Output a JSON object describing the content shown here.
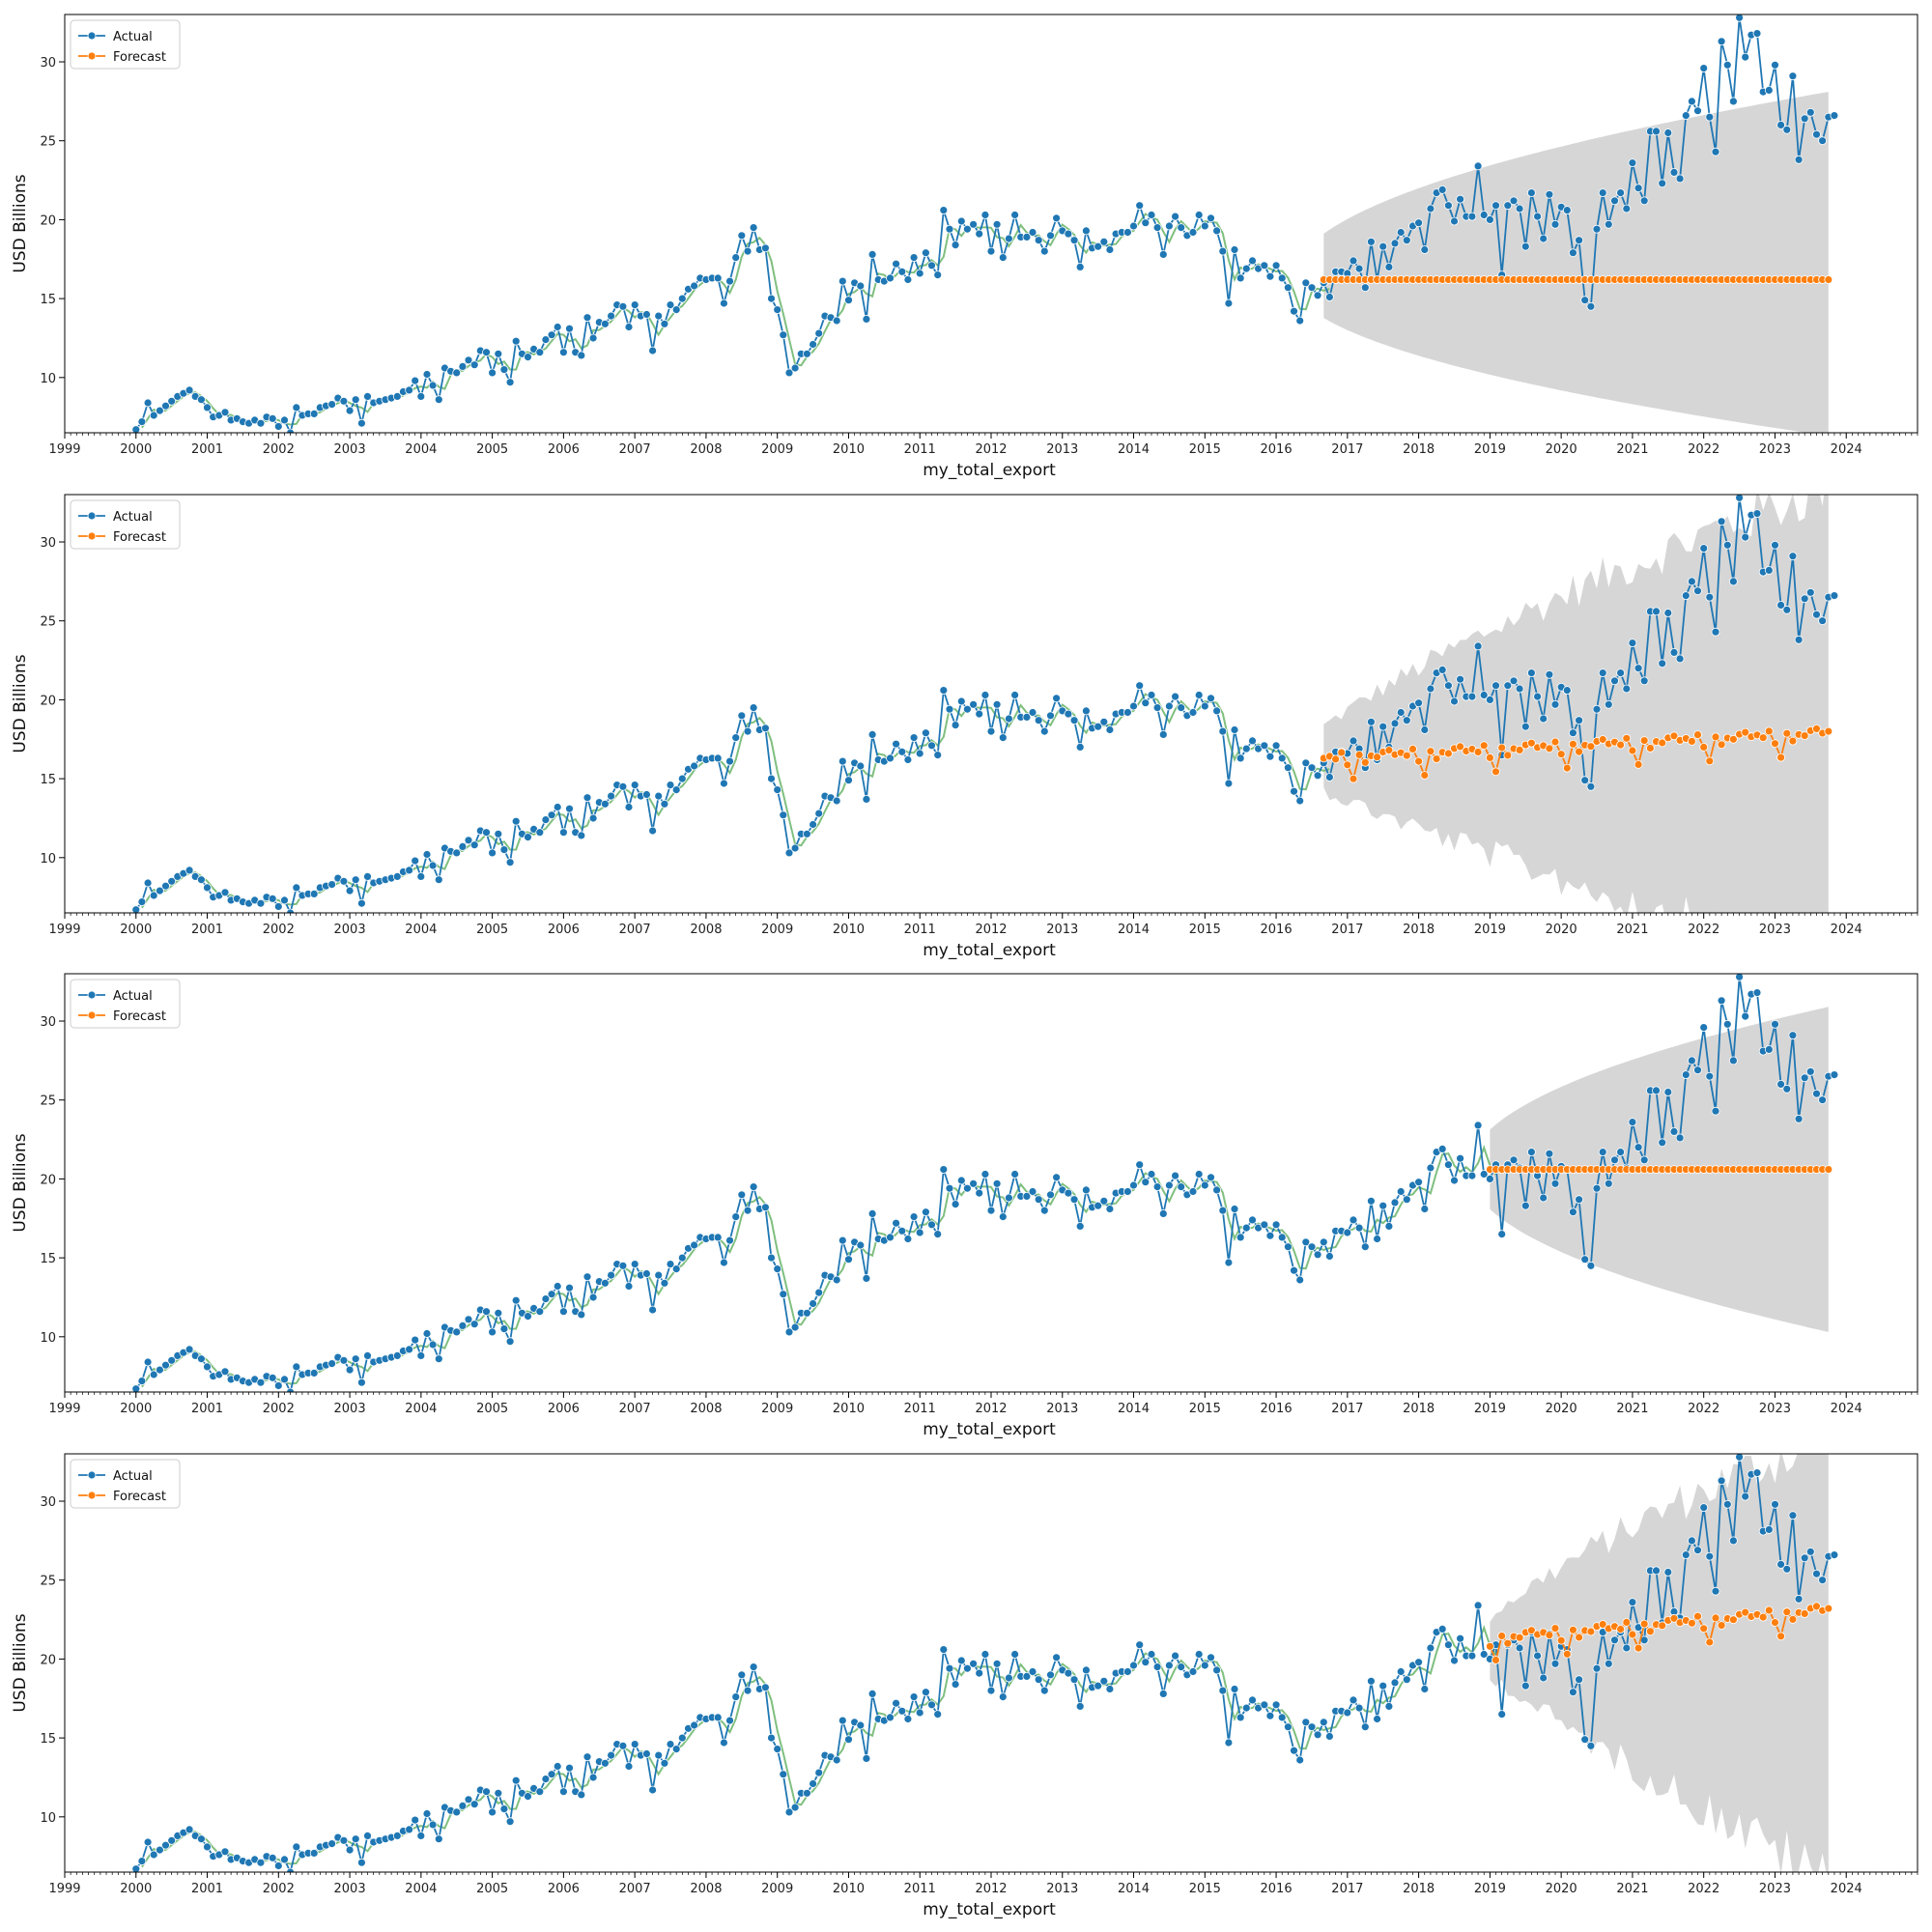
{
  "colors": {
    "actual": "#1f77b4",
    "forecast": "#ff7f0e",
    "fitted": "#7fbf7f",
    "band": "#c8c8c8",
    "axis": "#000000"
  },
  "chart_data": [
    {
      "type": "line",
      "xlabel": "my_total_export",
      "ylabel": "USD Billions",
      "xlim": [
        "1999-01",
        "2024-12"
      ],
      "ylim": [
        6.5,
        33
      ],
      "x_ticks": [
        "1999",
        "2000",
        "2001",
        "2002",
        "2003",
        "2004",
        "2005",
        "2006",
        "2007",
        "2008",
        "2009",
        "2010",
        "2011",
        "2012",
        "2013",
        "2014",
        "2015",
        "2016",
        "2017",
        "2018",
        "2019",
        "2020",
        "2021",
        "2022",
        "2023",
        "2024"
      ],
      "y_ticks": [
        10,
        15,
        20,
        25,
        30
      ],
      "legend": {
        "position": "top-left",
        "entries": [
          "Actual",
          "Forecast"
        ]
      },
      "forecast_start": "2016-09",
      "forecast_end": "2023-10",
      "forecast_kind": "flat",
      "forecast_level": 16.2,
      "band_kind": "cone",
      "band_upper_end": 28.1,
      "band_lower_end": 6.3
    },
    {
      "type": "line",
      "xlabel": "my_total_export",
      "ylabel": "USD Billions",
      "xlim": [
        "1999-01",
        "2024-12"
      ],
      "ylim": [
        6.5,
        33
      ],
      "x_ticks": [
        "1999",
        "2000",
        "2001",
        "2002",
        "2003",
        "2004",
        "2005",
        "2006",
        "2007",
        "2008",
        "2009",
        "2010",
        "2011",
        "2012",
        "2013",
        "2014",
        "2015",
        "2016",
        "2017",
        "2018",
        "2019",
        "2020",
        "2021",
        "2022",
        "2023",
        "2024"
      ],
      "y_ticks": [
        10,
        15,
        20,
        25,
        30
      ],
      "legend": {
        "position": "top-left",
        "entries": [
          "Actual",
          "Forecast"
        ]
      },
      "forecast_start": "2016-09",
      "forecast_end": "2023-10",
      "forecast_kind": "seasonal",
      "forecast_level_start": 16.0,
      "forecast_level_end": 17.6,
      "band_kind": "jagged",
      "band_upper_end": 33.5,
      "band_lower_end": 3.0
    },
    {
      "type": "line",
      "xlabel": "my_total_export",
      "ylabel": "USD Billions",
      "xlim": [
        "1999-01",
        "2024-12"
      ],
      "ylim": [
        6.5,
        33
      ],
      "x_ticks": [
        "1999",
        "2000",
        "2001",
        "2002",
        "2003",
        "2004",
        "2005",
        "2006",
        "2007",
        "2008",
        "2009",
        "2010",
        "2011",
        "2012",
        "2013",
        "2014",
        "2015",
        "2016",
        "2017",
        "2018",
        "2019",
        "2020",
        "2021",
        "2022",
        "2023",
        "2024"
      ],
      "y_ticks": [
        10,
        15,
        20,
        25,
        30
      ],
      "legend": {
        "position": "top-left",
        "entries": [
          "Actual",
          "Forecast"
        ]
      },
      "forecast_start": "2019-01",
      "forecast_end": "2023-10",
      "forecast_kind": "flat",
      "forecast_level": 20.6,
      "band_kind": "cone",
      "band_upper_end": 30.9,
      "band_lower_end": 10.3
    },
    {
      "type": "line",
      "xlabel": "my_total_export",
      "ylabel": "USD Billions",
      "xlim": [
        "1999-01",
        "2024-12"
      ],
      "ylim": [
        6.5,
        33
      ],
      "x_ticks": [
        "1999",
        "2000",
        "2001",
        "2002",
        "2003",
        "2004",
        "2005",
        "2006",
        "2007",
        "2008",
        "2009",
        "2010",
        "2011",
        "2012",
        "2013",
        "2014",
        "2015",
        "2016",
        "2017",
        "2018",
        "2019",
        "2020",
        "2021",
        "2022",
        "2023",
        "2024"
      ],
      "y_ticks": [
        10,
        15,
        20,
        25,
        30
      ],
      "legend": {
        "position": "top-left",
        "entries": [
          "Actual",
          "Forecast"
        ]
      },
      "forecast_start": "2019-01",
      "forecast_end": "2023-10",
      "forecast_kind": "seasonal",
      "forecast_level_start": 21.0,
      "forecast_level_end": 22.8,
      "band_kind": "jagged",
      "band_upper_end": 34.0,
      "band_lower_end": 6.0
    }
  ],
  "actual_series": {
    "name": "Actual",
    "start": "2000-01",
    "frequency": "monthly",
    "values": [
      6.7,
      7.2,
      8.4,
      7.6,
      7.9,
      8.2,
      8.5,
      8.8,
      9.0,
      9.2,
      8.8,
      8.6,
      8.1,
      7.5,
      7.6,
      7.8,
      7.3,
      7.4,
      7.2,
      7.1,
      7.3,
      7.1,
      7.5,
      7.4,
      6.9,
      7.3,
      6.5,
      8.1,
      7.6,
      7.7,
      7.7,
      8.1,
      8.2,
      8.3,
      8.7,
      8.5,
      7.9,
      8.6,
      7.1,
      8.8,
      8.4,
      8.5,
      8.6,
      8.7,
      8.8,
      9.1,
      9.2,
      9.8,
      8.8,
      10.2,
      9.5,
      8.6,
      10.6,
      10.4,
      10.3,
      10.7,
      11.1,
      10.8,
      11.7,
      11.6,
      10.3,
      11.5,
      10.5,
      9.7,
      12.3,
      11.5,
      11.3,
      11.8,
      11.6,
      12.4,
      12.7,
      13.2,
      11.6,
      13.1,
      11.6,
      11.4,
      13.8,
      12.5,
      13.5,
      13.4,
      13.9,
      14.6,
      14.5,
      13.2,
      14.6,
      13.9,
      14.0,
      11.7,
      13.9,
      13.4,
      14.6,
      14.3,
      15.0,
      15.6,
      15.8,
      16.3,
      16.2,
      16.3,
      16.3,
      14.7,
      16.1,
      17.6,
      19.0,
      18.0,
      19.5,
      18.1,
      18.2,
      15.0,
      14.3,
      12.7,
      10.3,
      10.6,
      11.5,
      11.5,
      12.1,
      12.8,
      13.9,
      13.8,
      13.6,
      16.1,
      14.9,
      16.0,
      15.8,
      13.7,
      17.8,
      16.2,
      16.1,
      16.3,
      17.2,
      16.7,
      16.2,
      17.6,
      16.6,
      17.9,
      17.1,
      16.5,
      20.6,
      19.4,
      18.4,
      19.9,
      19.4,
      19.7,
      19.1,
      20.3,
      18.0,
      19.7,
      17.6,
      18.8,
      20.3,
      18.9,
      18.9,
      19.2,
      18.7,
      18.0,
      19.0,
      20.1,
      19.3,
      19.1,
      18.7,
      17.0,
      19.3,
      18.2,
      18.3,
      18.6,
      18.1,
      19.1,
      19.2,
      19.2,
      19.6,
      20.9,
      19.8,
      20.3,
      19.5,
      17.8,
      19.6,
      20.2,
      19.5,
      19.0,
      19.2,
      20.3,
      19.6,
      20.1,
      19.3,
      18.0,
      14.7,
      18.1,
      16.3,
      16.9,
      17.4,
      16.9,
      17.1,
      16.4,
      17.1,
      16.3,
      15.7,
      14.2,
      13.6,
      16.0,
      15.7,
      15.2,
      16.0,
      15.1,
      16.7,
      16.7,
      16.6,
      17.4,
      16.9,
      15.7,
      18.6,
      16.2,
      18.3,
      17.0,
      18.5,
      19.2,
      18.7,
      19.6,
      19.8,
      18.1,
      20.7,
      21.7,
      21.9,
      20.9,
      19.9,
      21.3,
      20.2,
      20.2,
      23.4,
      20.3,
      20.0,
      20.9,
      16.5,
      20.9,
      21.2,
      20.7,
      18.3,
      21.7,
      20.2,
      18.8,
      21.6,
      19.7,
      20.8,
      20.6,
      17.9,
      18.7,
      14.9,
      14.5,
      19.4,
      21.7,
      19.7,
      21.2,
      21.7,
      20.7,
      23.6,
      22.0,
      21.2,
      25.6,
      25.6,
      22.3,
      25.5,
      23.0,
      22.6,
      26.6,
      27.5,
      26.9,
      29.6,
      26.5,
      24.3,
      31.3,
      29.8,
      27.5,
      32.8,
      30.3,
      31.7,
      31.8,
      28.1,
      28.2,
      29.8,
      26.0,
      25.7,
      29.1,
      23.8,
      26.4,
      26.8,
      25.4,
      25.0,
      26.5,
      26.6
    ]
  }
}
